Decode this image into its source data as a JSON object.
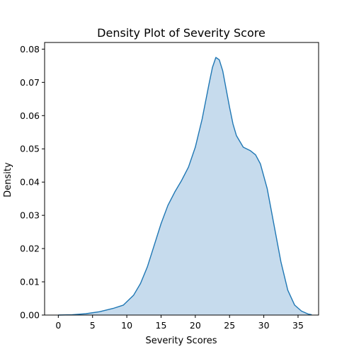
{
  "chart_data": {
    "type": "area",
    "title": "Density Plot of Severity Score",
    "xlabel": "Severity Scores",
    "ylabel": "Density",
    "xlim": [
      -2,
      38
    ],
    "ylim": [
      0,
      0.082
    ],
    "xticks": [
      0,
      5,
      10,
      15,
      20,
      25,
      30,
      35
    ],
    "yticks": [
      0.0,
      0.01,
      0.02,
      0.03,
      0.04,
      0.05,
      0.06,
      0.07,
      0.08
    ],
    "ytick_labels": [
      "0.00",
      "0.01",
      "0.02",
      "0.03",
      "0.04",
      "0.05",
      "0.06",
      "0.07",
      "0.08"
    ],
    "grid": false,
    "legend": "none",
    "series": [
      {
        "color": "#1f77b4",
        "fill": "#c6dbed",
        "points": [
          [
            0,
            0.0
          ],
          [
            2,
            0.0001
          ],
          [
            4,
            0.0004
          ],
          [
            6,
            0.001
          ],
          [
            8,
            0.002
          ],
          [
            9.5,
            0.003
          ],
          [
            11,
            0.006
          ],
          [
            12,
            0.0095
          ],
          [
            13,
            0.0145
          ],
          [
            14,
            0.021
          ],
          [
            15,
            0.0275
          ],
          [
            16,
            0.033
          ],
          [
            17,
            0.037
          ],
          [
            18,
            0.0405
          ],
          [
            19,
            0.0445
          ],
          [
            20,
            0.0505
          ],
          [
            21,
            0.059
          ],
          [
            22,
            0.0695
          ],
          [
            22.5,
            0.0745
          ],
          [
            23,
            0.0775
          ],
          [
            23.5,
            0.0768
          ],
          [
            24,
            0.0735
          ],
          [
            25,
            0.0625
          ],
          [
            25.5,
            0.0575
          ],
          [
            26,
            0.054
          ],
          [
            27,
            0.0505
          ],
          [
            28,
            0.0495
          ],
          [
            28.8,
            0.0482
          ],
          [
            29.5,
            0.0455
          ],
          [
            30.5,
            0.038
          ],
          [
            31.5,
            0.027
          ],
          [
            32.5,
            0.016
          ],
          [
            33.5,
            0.0075
          ],
          [
            34.5,
            0.003
          ],
          [
            35.5,
            0.0012
          ],
          [
            36.5,
            0.0003
          ],
          [
            37,
            0.0001
          ]
        ]
      }
    ]
  }
}
